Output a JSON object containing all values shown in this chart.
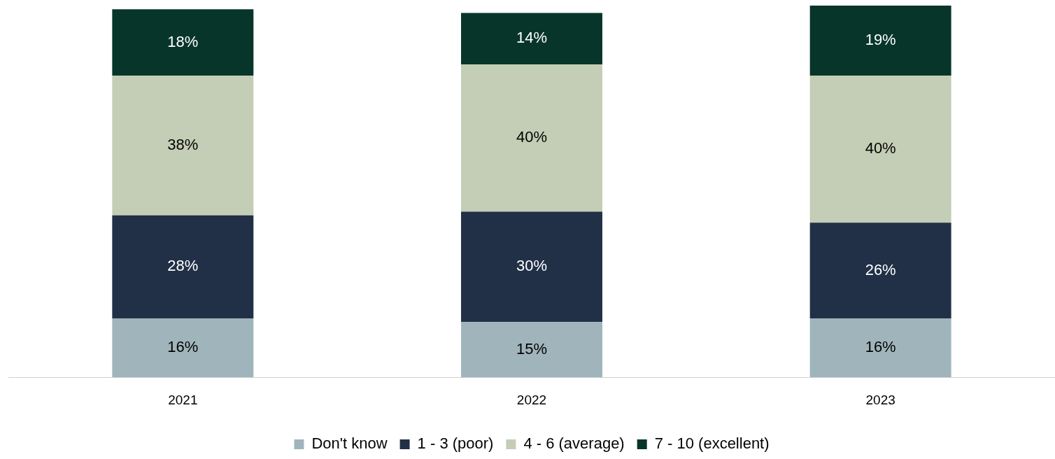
{
  "chart_data": {
    "type": "bar",
    "stacked": true,
    "categories": [
      "2021",
      "2022",
      "2023"
    ],
    "series": [
      {
        "name": "Don't know",
        "color": "#a0b5bb",
        "values": [
          16,
          15,
          16
        ],
        "value_labels": [
          "16%",
          "15%",
          "16%"
        ]
      },
      {
        "name": "1 - 3 (poor)",
        "color": "#213047",
        "values": [
          28,
          30,
          26
        ],
        "value_labels": [
          "28%",
          "30%",
          "26%"
        ]
      },
      {
        "name": "4 - 6 (average)",
        "color": "#c4cdb5",
        "values": [
          38,
          40,
          40
        ],
        "value_labels": [
          "38%",
          "40%",
          "40%"
        ]
      },
      {
        "name": "7 - 10 (excellent)",
        "color": "#07352a",
        "values": [
          18,
          14,
          19
        ],
        "value_labels": [
          "18%",
          "14%",
          "19%"
        ]
      }
    ],
    "legend": "bottom",
    "grid": false,
    "tick_labels": "x"
  }
}
